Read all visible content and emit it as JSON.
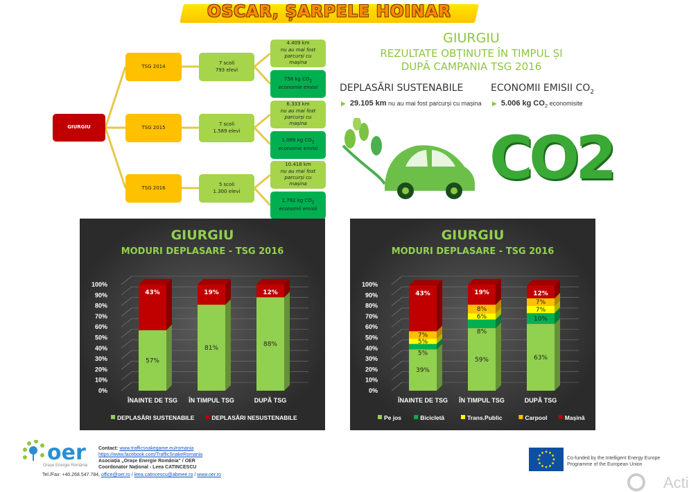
{
  "title": "OSCAR, ȘARPELE HOINAR",
  "diagram": {
    "root": "GIURGIU",
    "years": [
      {
        "label": "TSG 2014",
        "schools": "7 scoli",
        "pupils": "793 elevi",
        "km": "4.409 km",
        "km_note": "nu au mai fost parcurși cu mașina",
        "co2": "758 kg CO",
        "co2_note": "economie emisii"
      },
      {
        "label": "TSG 2015",
        "schools": "7 scoli",
        "pupils": "1.589 elevi",
        "km": "6.333 km",
        "km_note": "nu au mai fost parcurși cu mașina",
        "co2": "1.089 kg CO",
        "co2_note": "economie emisii"
      },
      {
        "label": "TSG 2016",
        "schools": "5 scoli",
        "pupils": "1.300 elevi",
        "km": "10.418 km",
        "km_note": "nu au mai fost parcurși cu mașina",
        "co2": "1.792 kg CO",
        "co2_note": "economii emisii"
      }
    ]
  },
  "results": {
    "city": "GIURGIU",
    "line1": "REZULTATE OBȚINUTE ÎN TIMPUL ȘI",
    "line2": "DUPĂ CAMPANIA TSG 2016",
    "sust_title": "DEPLASĂRI SUSTENABILE",
    "sust_value": "29.105 km",
    "sust_text": "nu au mai fost parcurși cu mașina",
    "co2_title": "ECONOMII EMISII CO",
    "co2_value": "5.006 kg CO",
    "co2_text": "economisite",
    "sub2": "2",
    "co2_graphic": "CO2"
  },
  "chart_data": [
    {
      "type": "bar",
      "stacked": true,
      "title": "GIURGIU",
      "subtitle": "MODURI DEPLASARE - TSG 2016",
      "ylim": [
        0,
        100
      ],
      "yticks": [
        "0%",
        "10%",
        "20%",
        "30%",
        "40%",
        "50%",
        "60%",
        "70%",
        "80%",
        "90%",
        "100%"
      ],
      "categories": [
        "ÎNAINTE DE TSG",
        "ÎN TIMPUL TSG",
        "DUPĂ TSG"
      ],
      "series": [
        {
          "name": "DEPLASĂRI SUSTENABILE",
          "color": "#92d050",
          "values": [
            57,
            81,
            88
          ]
        },
        {
          "name": "DEPLASĂRI NESUSTENABILE",
          "color": "#c00000",
          "values": [
            43,
            19,
            12
          ]
        }
      ],
      "legend": "bottom",
      "grid": true
    },
    {
      "type": "bar",
      "stacked": true,
      "title": "GIURGIU",
      "subtitle": "MODURI DEPLASARE - TSG 2016",
      "ylim": [
        0,
        100
      ],
      "yticks": [
        "0%",
        "10%",
        "20%",
        "30%",
        "40%",
        "50%",
        "60%",
        "70%",
        "80%",
        "90%",
        "100%"
      ],
      "categories": [
        "ÎNAINTE DE TSG",
        "ÎN TIMPUL TSG",
        "DUPĂ TSG"
      ],
      "series": [
        {
          "name": "Pe jos",
          "color": "#92d050",
          "values": [
            39,
            59,
            63
          ]
        },
        {
          "name": "Bicicletă",
          "color": "#00b050",
          "values": [
            5,
            8,
            10
          ]
        },
        {
          "name": "Trans.Public",
          "color": "#ffff00",
          "values": [
            5,
            6,
            7
          ]
        },
        {
          "name": "Carpool",
          "color": "#ffc000",
          "values": [
            7,
            8,
            7
          ]
        },
        {
          "name": "Mașină",
          "color": "#c00000",
          "values": [
            43,
            19,
            12
          ]
        }
      ],
      "legend": "bottom",
      "grid": true
    }
  ],
  "footer": {
    "logo": "oer",
    "logo_sub": "Orașe Energie România",
    "contact_label": "Contact:",
    "contact_link": "www.trafficsnakegame.eu/romania",
    "facebook": "https://www.facebook.com/TrafficSnakeRomania",
    "assoc": "Asociația „Orașe Energie România\" / OER",
    "coord": "Coordonator Național - Leea CATINCESCU",
    "tel": "Tel./Fax: +40.268.547.784,",
    "email1": "office@oer.ro",
    "email2": "leea.catincescu@abmee.ro",
    "web": "www.oer.ro",
    "eu_text1": "Co-funded by the Intelligent Energy Europe",
    "eu_text2": "Programme of the European Union",
    "watermark": "Activ"
  }
}
